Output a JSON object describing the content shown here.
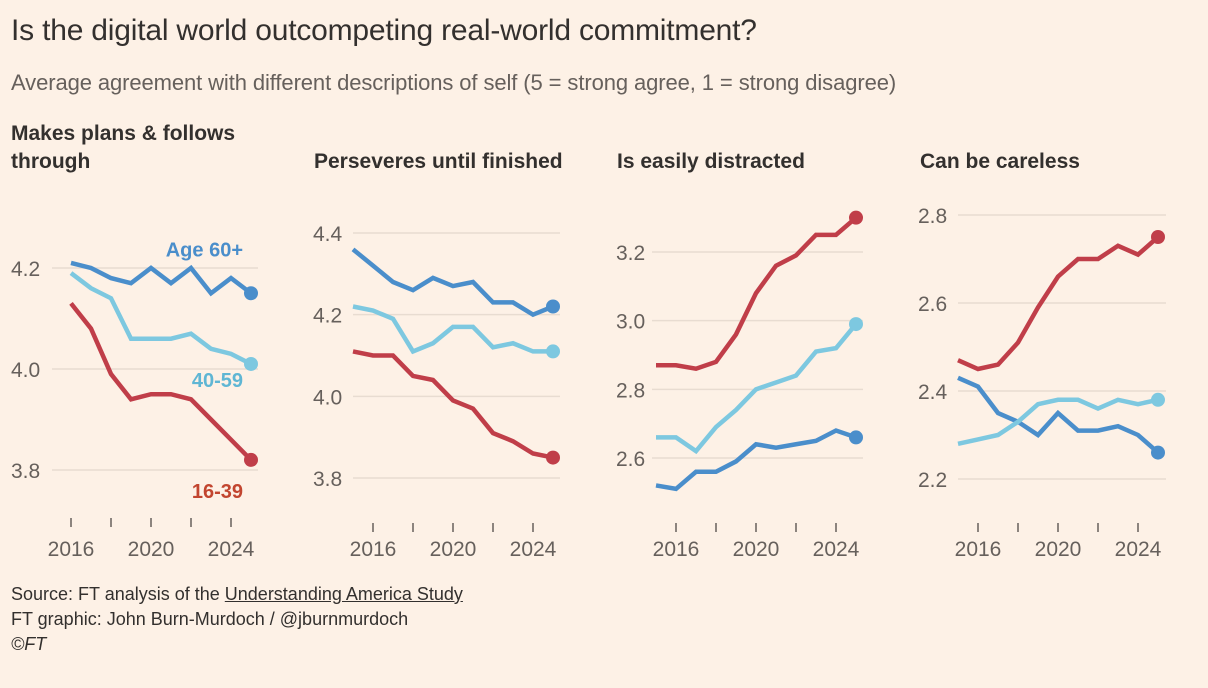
{
  "header": {
    "title": "Is the digital world outcompeting real-world commitment?",
    "subtitle": "Average agreement with different descriptions of self (5 = strong agree, 1 = strong disagree)"
  },
  "colors": {
    "age_60_plus": "#4A8ECB",
    "age_40_59": "#7DC8E0",
    "age_16_39": "#C03E49",
    "age_16_39_label": "#C2452F",
    "age_40_59_label": "#5FB6D4",
    "grid": "#E8DCD1",
    "axis_text": "#66605C"
  },
  "footer": {
    "source_prefix": "Source: FT analysis of the ",
    "source_link": "Understanding America Study",
    "credit": "FT graphic: John Burn-Murdoch / @jburnmurdoch",
    "copyright": "©FT"
  },
  "chart_data": [
    {
      "type": "line",
      "title": "Makes plans & follows through",
      "title_lines": [
        "Makes plans & follows",
        "through"
      ],
      "xlabel": "",
      "ylabel": "",
      "xlim": [
        2016,
        2025
      ],
      "ylim": [
        3.7,
        4.3
      ],
      "yticks": [
        3.8,
        4.0,
        4.2
      ],
      "ytick_labels": [
        "3.8",
        "4.0",
        "4.2"
      ],
      "xticks": [
        2016,
        2018,
        2020,
        2022,
        2024
      ],
      "xtick_labels": [
        "2016",
        "2020",
        "2024"
      ],
      "xtick_label_years": [
        2016,
        2020,
        2024
      ],
      "grid": true,
      "x": [
        2016,
        2017,
        2018,
        2019,
        2020,
        2021,
        2022,
        2023,
        2024,
        2025
      ],
      "series": [
        {
          "name": "Age 60+",
          "key": "age_60_plus",
          "values": [
            4.21,
            4.2,
            4.18,
            4.17,
            4.2,
            4.17,
            4.2,
            4.15,
            4.18,
            4.15
          ],
          "label": "Age 60+",
          "label_pos": "above-end"
        },
        {
          "name": "40-59",
          "key": "age_40_59",
          "values": [
            4.19,
            4.16,
            4.14,
            4.06,
            4.06,
            4.06,
            4.07,
            4.04,
            4.03,
            4.01
          ],
          "label": "40-59",
          "label_pos": "below-end"
        },
        {
          "name": "16-39",
          "key": "age_16_39",
          "values": [
            4.13,
            4.08,
            3.99,
            3.94,
            3.95,
            3.95,
            3.94,
            3.9,
            3.86,
            3.82
          ],
          "label": "16-39",
          "label_pos": "below-end"
        }
      ]
    },
    {
      "type": "line",
      "title": "Perseveres until finished",
      "title_lines": [
        "Perseveres until finished"
      ],
      "xlabel": "",
      "ylabel": "",
      "xlim": [
        2015,
        2025
      ],
      "ylim": [
        3.7,
        4.45
      ],
      "yticks": [
        3.8,
        4.0,
        4.2,
        4.4
      ],
      "ytick_labels": [
        "3.8",
        "4.0",
        "4.2",
        "4.4"
      ],
      "xticks": [
        2016,
        2018,
        2020,
        2022,
        2024
      ],
      "xtick_labels": [
        "2016",
        "2020",
        "2024"
      ],
      "xtick_label_years": [
        2016,
        2020,
        2024
      ],
      "grid": true,
      "x": [
        2015,
        2016,
        2017,
        2018,
        2019,
        2020,
        2021,
        2022,
        2023,
        2024,
        2025
      ],
      "series": [
        {
          "name": "Age 60+",
          "key": "age_60_plus",
          "values": [
            4.36,
            4.32,
            4.28,
            4.26,
            4.29,
            4.27,
            4.28,
            4.23,
            4.23,
            4.2,
            4.22
          ]
        },
        {
          "name": "40-59",
          "key": "age_40_59",
          "values": [
            4.22,
            4.21,
            4.19,
            4.11,
            4.13,
            4.17,
            4.17,
            4.12,
            4.13,
            4.11,
            4.11
          ]
        },
        {
          "name": "16-39",
          "key": "age_16_39",
          "values": [
            4.11,
            4.1,
            4.1,
            4.05,
            4.04,
            3.99,
            3.97,
            3.91,
            3.89,
            3.86,
            3.85
          ]
        }
      ]
    },
    {
      "type": "line",
      "title": "Is easily distracted",
      "title_lines": [
        "Is easily distracted"
      ],
      "xlabel": "",
      "ylabel": "",
      "xlim": [
        2015,
        2025
      ],
      "ylim": [
        2.45,
        3.35
      ],
      "yticks": [
        2.6,
        2.8,
        3.0,
        3.2
      ],
      "ytick_labels": [
        "2.6",
        "2.8",
        "3.0",
        "3.2"
      ],
      "xticks": [
        2016,
        2018,
        2020,
        2022,
        2024
      ],
      "xtick_labels": [
        "2016",
        "2020",
        "2024"
      ],
      "xtick_label_years": [
        2016,
        2020,
        2024
      ],
      "grid": true,
      "x": [
        2015,
        2016,
        2017,
        2018,
        2019,
        2020,
        2021,
        2022,
        2023,
        2024,
        2025
      ],
      "series": [
        {
          "name": "Age 60+",
          "key": "age_60_plus",
          "values": [
            2.52,
            2.51,
            2.56,
            2.56,
            2.59,
            2.64,
            2.63,
            2.64,
            2.65,
            2.68,
            2.66
          ]
        },
        {
          "name": "40-59",
          "key": "age_40_59",
          "values": [
            2.66,
            2.66,
            2.62,
            2.69,
            2.74,
            2.8,
            2.82,
            2.84,
            2.91,
            2.92,
            2.99
          ]
        },
        {
          "name": "16-39",
          "key": "age_16_39",
          "values": [
            2.87,
            2.87,
            2.86,
            2.88,
            2.96,
            3.08,
            3.16,
            3.19,
            3.25,
            3.25,
            3.3
          ]
        }
      ]
    },
    {
      "type": "line",
      "title": "Can be careless",
      "title_lines": [
        "Can be careless"
      ],
      "xlabel": "",
      "ylabel": "",
      "xlim": [
        2015,
        2025
      ],
      "ylim": [
        2.15,
        2.82
      ],
      "yticks": [
        2.2,
        2.4,
        2.6,
        2.8
      ],
      "ytick_labels": [
        "2.2",
        "2.4",
        "2.6",
        "2.8"
      ],
      "xticks": [
        2016,
        2018,
        2020,
        2022,
        2024
      ],
      "xtick_labels": [
        "2016",
        "2020",
        "2024"
      ],
      "xtick_label_years": [
        2016,
        2020,
        2024
      ],
      "grid": true,
      "x": [
        2015,
        2016,
        2017,
        2018,
        2019,
        2020,
        2021,
        2022,
        2023,
        2024,
        2025
      ],
      "series": [
        {
          "name": "Age 60+",
          "key": "age_60_plus",
          "values": [
            2.43,
            2.41,
            2.35,
            2.33,
            2.3,
            2.35,
            2.31,
            2.31,
            2.32,
            2.3,
            2.26
          ]
        },
        {
          "name": "40-59",
          "key": "age_40_59",
          "values": [
            2.28,
            2.29,
            2.3,
            2.33,
            2.37,
            2.38,
            2.38,
            2.36,
            2.38,
            2.37,
            2.38
          ]
        },
        {
          "name": "16-39",
          "key": "age_16_39",
          "values": [
            2.47,
            2.45,
            2.46,
            2.51,
            2.59,
            2.66,
            2.7,
            2.7,
            2.73,
            2.71,
            2.75
          ]
        }
      ]
    }
  ]
}
